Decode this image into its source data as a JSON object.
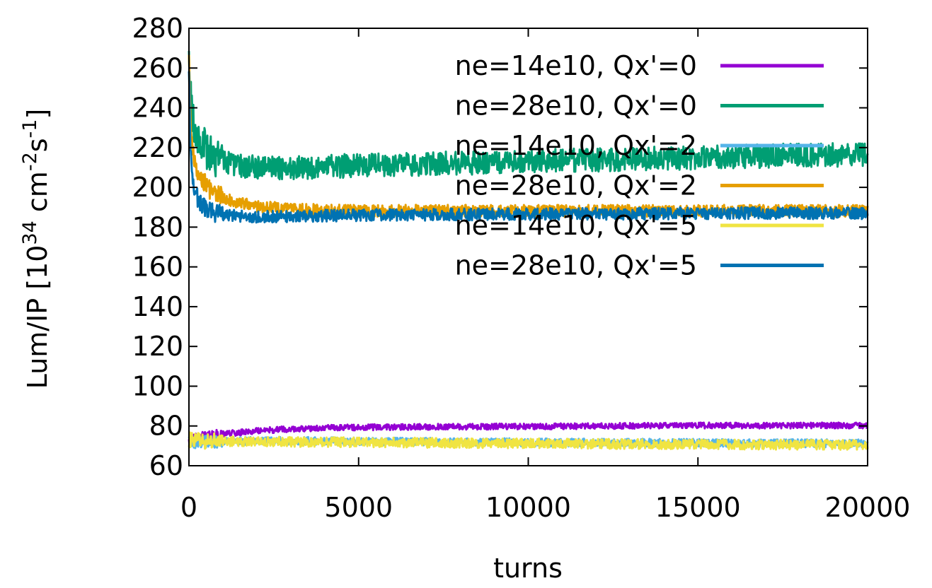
{
  "chart_data": {
    "type": "line",
    "title": "",
    "xlabel": "turns",
    "ylabel": {
      "prefix": "Lum/IP [10",
      "exp1": "34",
      "mid1": " cm",
      "exp2": "-2",
      "mid2": "s",
      "exp3": "-1",
      "suffix": "]"
    },
    "xlim": [
      0,
      20000
    ],
    "ylim": [
      60,
      280
    ],
    "xticks": [
      0,
      5000,
      10000,
      15000,
      20000
    ],
    "yticks": [
      60,
      80,
      100,
      120,
      140,
      160,
      180,
      200,
      220,
      240,
      260,
      280
    ],
    "grid": false,
    "legend_position": "top-right",
    "series": [
      {
        "name": "ne=14e10, Qx'=0",
        "color": "#9400d3",
        "x": [
          0,
          200,
          500,
          1000,
          2000,
          3000,
          4000,
          5000,
          7500,
          10000,
          12500,
          15000,
          17500,
          20000
        ],
        "y": [
          72,
          74,
          75,
          76,
          77.5,
          78.5,
          79,
          79.3,
          79.6,
          79.8,
          80,
          80.2,
          80.2,
          80.3
        ],
        "noise": 1.5
      },
      {
        "name": "ne=28e10, Qx'=0",
        "color": "#009e73",
        "x": [
          0,
          50,
          150,
          300,
          600,
          1000,
          1500,
          2000,
          3000,
          4000,
          5000,
          7500,
          10000,
          12500,
          15000,
          17500,
          20000
        ],
        "y": [
          262,
          245,
          232,
          224,
          217,
          213,
          211,
          210,
          210,
          210.5,
          211,
          212,
          213,
          214,
          215,
          216,
          216.5
        ],
        "noise": 6
      },
      {
        "name": "ne=14e10, Qx'=2",
        "color": "#56b4e9",
        "x": [
          0,
          500,
          1000,
          2000,
          3000,
          5000,
          7500,
          10000,
          12500,
          15000,
          17500,
          20000
        ],
        "y": [
          72,
          72,
          72.3,
          72.5,
          72.5,
          72.3,
          72,
          71.8,
          71.6,
          71.5,
          71.3,
          71.2
        ],
        "noise": 2
      },
      {
        "name": "ne=28e10, Qx'=2",
        "color": "#e69f00",
        "x": [
          0,
          50,
          150,
          300,
          600,
          1000,
          1500,
          2000,
          3000,
          4000,
          5000,
          7500,
          10000,
          12500,
          15000,
          17500,
          20000
        ],
        "y": [
          262,
          230,
          215,
          206,
          199,
          195,
          192,
          190.5,
          189,
          188.5,
          188.3,
          188.2,
          188.2,
          188.2,
          188.2,
          188.2,
          188.2
        ],
        "noise": 3
      },
      {
        "name": "ne=14e10, Qx'=5",
        "color": "#f0e442",
        "x": [
          0,
          500,
          1000,
          2000,
          3000,
          5000,
          7500,
          10000,
          12500,
          15000,
          17500,
          20000
        ],
        "y": [
          73,
          72.5,
          72.3,
          72.2,
          72,
          71.8,
          71.5,
          71.2,
          71,
          70.8,
          70.6,
          70.5
        ],
        "noise": 2.5
      },
      {
        "name": "ne=28e10, Qx'=5",
        "color": "#0072b2",
        "x": [
          0,
          50,
          150,
          300,
          600,
          1000,
          1500,
          2000,
          3000,
          4000,
          5000,
          7500,
          10000,
          12500,
          15000,
          17500,
          20000
        ],
        "y": [
          262,
          215,
          200,
          193,
          188,
          186,
          185.5,
          185.3,
          185.5,
          185.8,
          186,
          186.3,
          186.5,
          186.7,
          187,
          187,
          187
        ],
        "noise": 3
      }
    ]
  }
}
